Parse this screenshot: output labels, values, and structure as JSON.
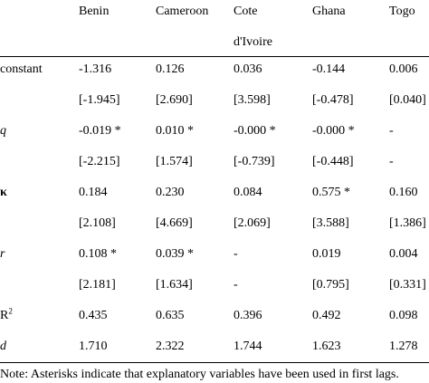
{
  "table": {
    "columns": [
      "Benin",
      "Cameroon",
      "Cote d'Ivoire",
      "Ghana",
      "Togo"
    ],
    "rows": [
      {
        "label": "constant",
        "estimates": [
          "-1.316",
          "0.126",
          "0.036",
          "-0.144",
          "0.006"
        ],
        "t_stats": [
          "[-1.945]",
          "[2.690]",
          "[3.598]",
          "[-0.478]",
          "[0.040]"
        ]
      },
      {
        "label": "q",
        "style": "italic",
        "estimates": [
          "-0.019 *",
          "0.010 *",
          "-0.000 *",
          "-0.000 *",
          "-"
        ],
        "t_stats": [
          "[-2.215]",
          "[1.574]",
          "[-0.739]",
          "[-0.448]",
          "-"
        ]
      },
      {
        "label": "κ",
        "style": "bold",
        "estimates": [
          "0.184",
          "0.230",
          "0.084",
          "0.575 *",
          "0.160"
        ],
        "t_stats": [
          "[2.108]",
          "[4.669]",
          "[2.069]",
          "[3.588]",
          "[1.386]"
        ]
      },
      {
        "label": "r",
        "style": "italic",
        "estimates": [
          "0.108 *",
          "0.039 *",
          "-",
          "0.019",
          "0.004"
        ],
        "t_stats": [
          "[2.181]",
          "[1.634]",
          "-",
          "[0.795]",
          "[0.331]"
        ]
      },
      {
        "label": "R",
        "label_sup": "2",
        "estimates": [
          "0.435",
          "0.635",
          "0.396",
          "0.492",
          "0.098"
        ]
      },
      {
        "label": "d",
        "style": "italic",
        "estimates": [
          "1.710",
          "2.322",
          "1.744",
          "1.623",
          "1.278"
        ]
      }
    ],
    "note": "Note: Asterisks indicate that explanatory variables have been used in first lags."
  }
}
